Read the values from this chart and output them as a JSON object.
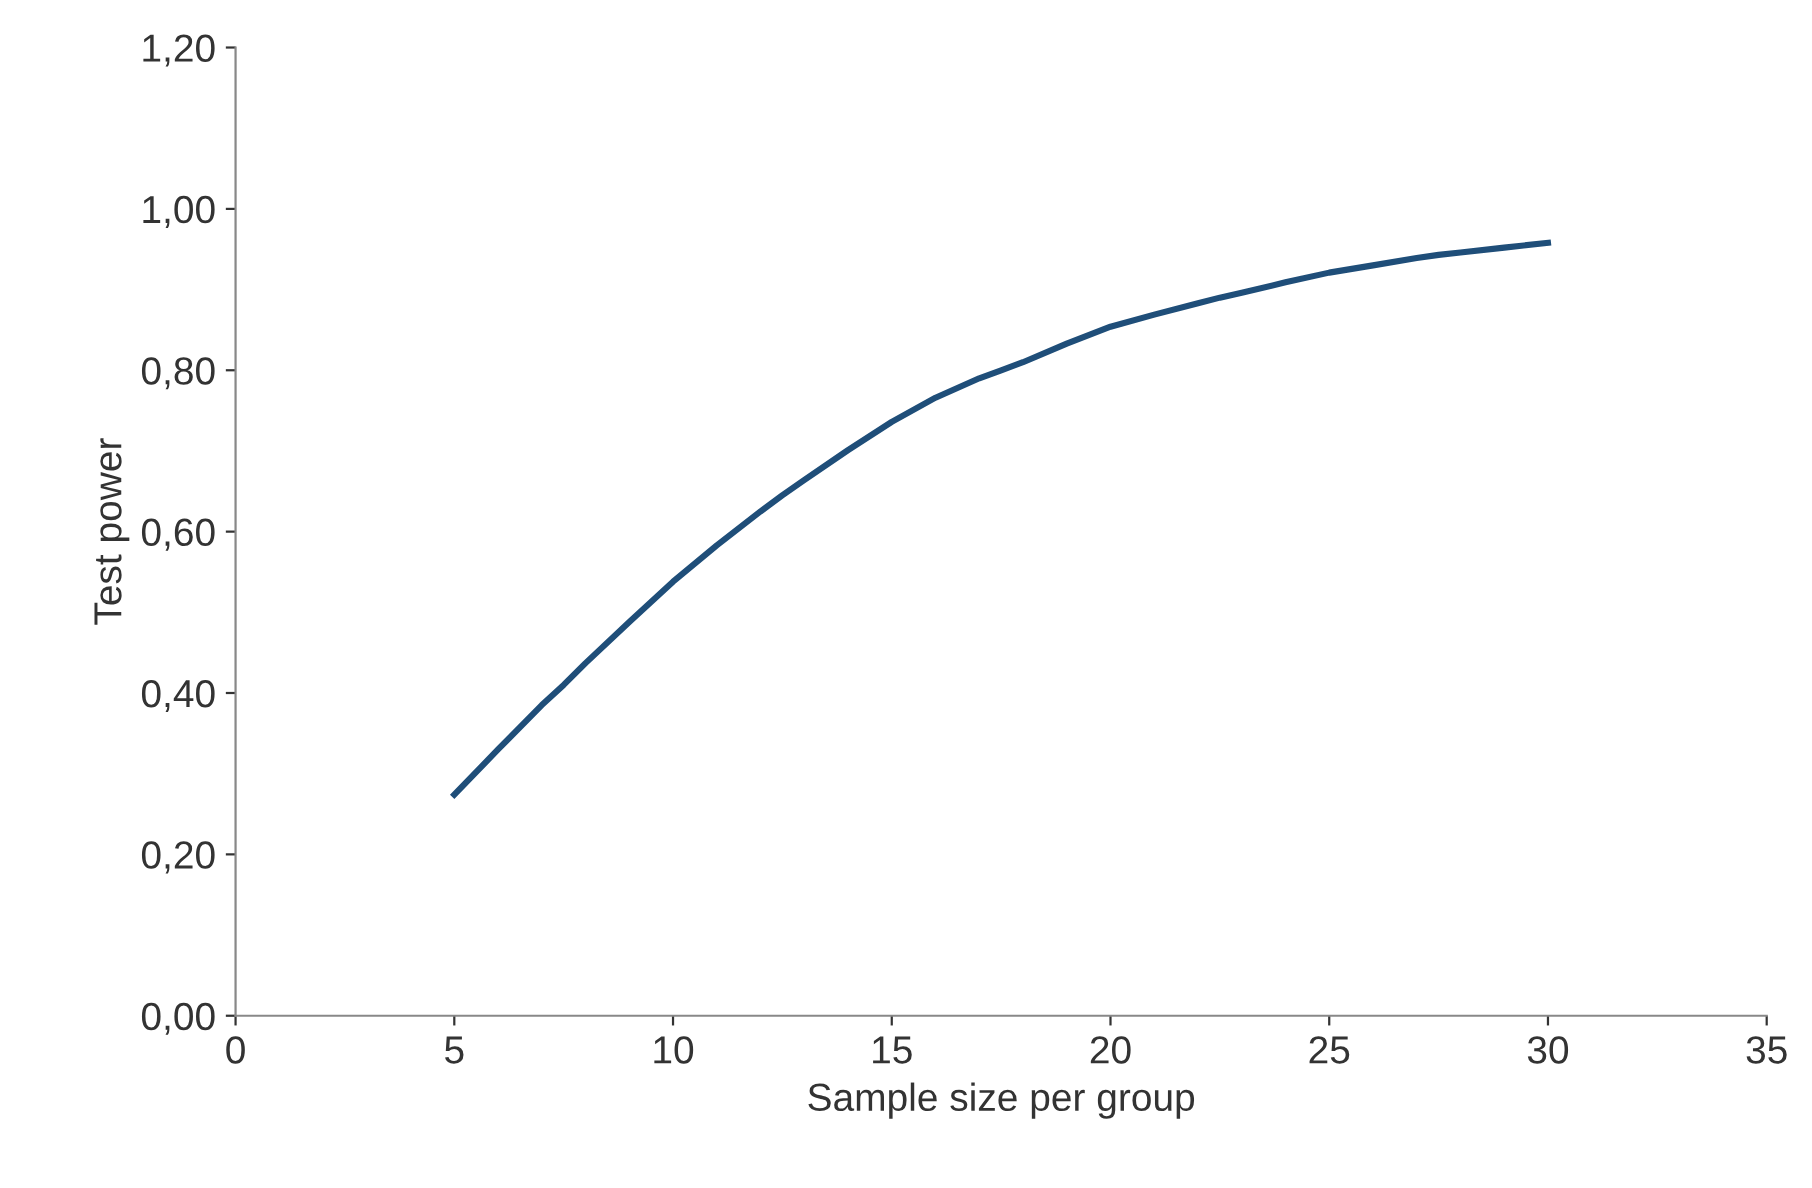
{
  "chart_data": {
    "type": "line",
    "xlabel": "Sample size per group",
    "ylabel": "Test power",
    "x": [
      5,
      6,
      7,
      7.5,
      8,
      9,
      10,
      11,
      12,
      12.5,
      13,
      14,
      15,
      16,
      17,
      17.5,
      18,
      19,
      20,
      21,
      22,
      22.5,
      23,
      24,
      25,
      26,
      27,
      27.5,
      28,
      29,
      30
    ],
    "series": [
      {
        "color": "#1f4e79",
        "values": [
          0.274,
          0.33,
          0.385,
          0.41,
          0.437,
          0.488,
          0.538,
          0.583,
          0.625,
          0.645,
          0.664,
          0.701,
          0.736,
          0.766,
          0.79,
          0.8,
          0.81,
          0.833,
          0.854,
          0.869,
          0.883,
          0.89,
          0.896,
          0.909,
          0.921,
          0.93,
          0.939,
          0.943,
          0.946,
          0.952,
          0.958
        ]
      }
    ],
    "xlim": [
      0,
      35
    ],
    "xticks": [
      0,
      5,
      10,
      15,
      20,
      25,
      30,
      35
    ],
    "ylim": [
      0,
      1.2
    ],
    "yticks": [
      {
        "value": 0,
        "label": "0,00"
      },
      {
        "value": 0.2,
        "label": "0,20"
      },
      {
        "value": 0.4,
        "label": "0,40"
      },
      {
        "value": 0.6,
        "label": "0,60"
      },
      {
        "value": 0.8,
        "label": "0,80"
      },
      {
        "value": 1.0,
        "label": "1,00"
      },
      {
        "value": 1.2,
        "label": "1,20"
      }
    ],
    "grid": false,
    "legend": false,
    "marker": "none",
    "line_style": "solid"
  }
}
